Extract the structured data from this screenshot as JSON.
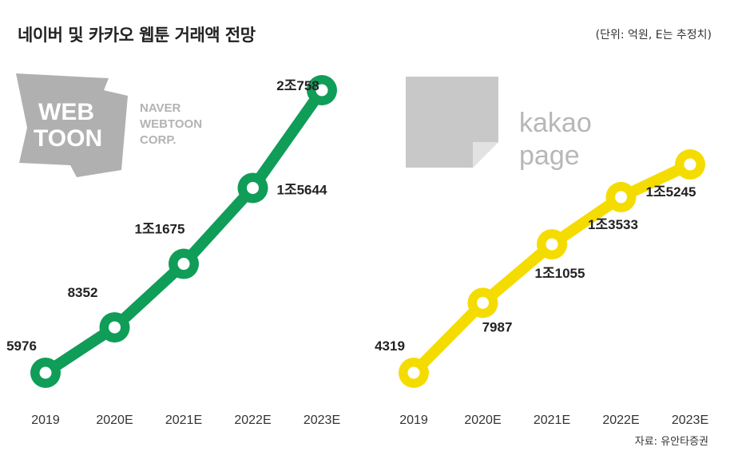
{
  "title": "네이버 및 카카오 웹툰 거래액 전망",
  "unit_note": "(단위: 억원, E는 추정치)",
  "source": "자료: 유안타증권",
  "logos": {
    "webtoon_line1": "WEB",
    "webtoon_line2": "TOON",
    "naver_line1": "NAVER",
    "naver_line2": "WEBTOON",
    "naver_line3": "CORP.",
    "kakao_line1": "kakao",
    "kakao_line2": "page"
  },
  "chart_data": [
    {
      "type": "line",
      "name": "NAVER WEBTOON CORP.",
      "categories": [
        "2019",
        "2020E",
        "2021E",
        "2022E",
        "2023E"
      ],
      "values": [
        5976,
        8352,
        11675,
        15644,
        20758
      ],
      "labels": [
        "5976",
        "8352",
        "1조1675",
        "1조5644",
        "2조758"
      ],
      "color": "#0f9d58"
    },
    {
      "type": "line",
      "name": "kakao page",
      "categories": [
        "2019",
        "2020E",
        "2021E",
        "2022E",
        "2023E"
      ],
      "values": [
        4319,
        7987,
        11055,
        13533,
        15245
      ],
      "labels": [
        "4319",
        "7987",
        "1조1055",
        "1조3533",
        "1조5245"
      ],
      "color": "#f5dc00"
    }
  ]
}
